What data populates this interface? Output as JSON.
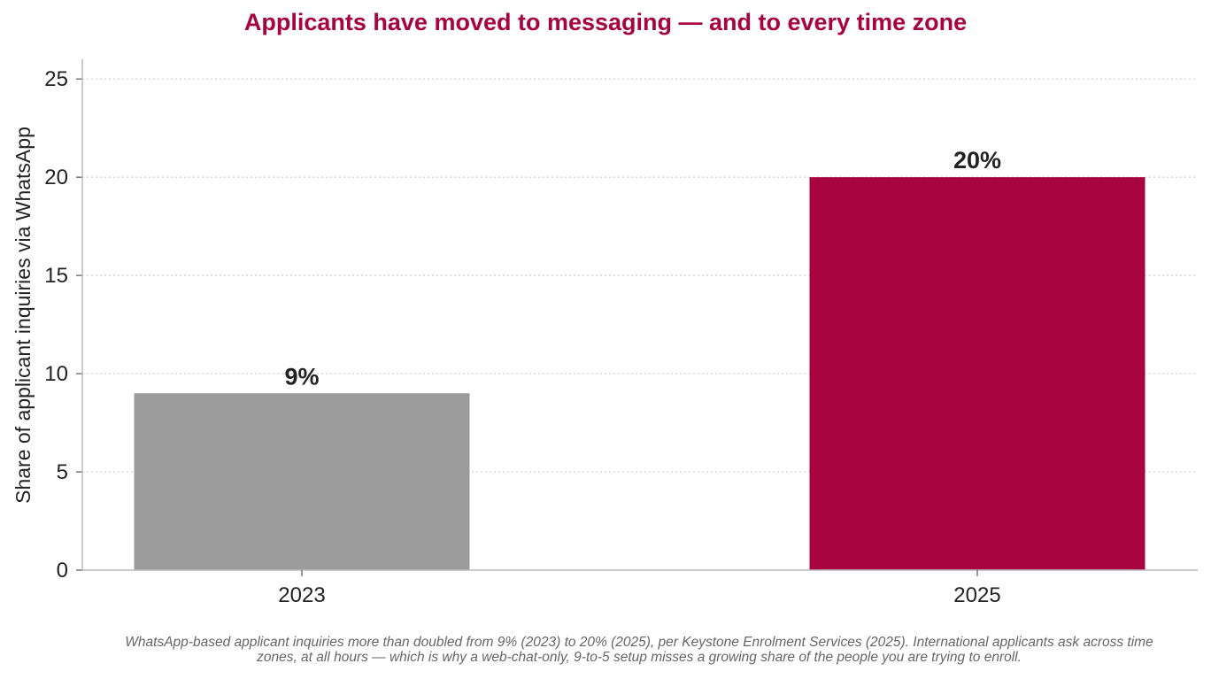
{
  "colors": {
    "accent": "#a6033f",
    "baseline_bar": "#9b9b9b",
    "text": "#222222",
    "caption": "#666666",
    "grid": "#cccccc",
    "axis": "#bbbbbb"
  },
  "caption": "WhatsApp-based applicant inquiries more than doubled from 9% (2023) to 20% (2025), per Keystone Enrolment Services (2025). International applicants ask across time zones, at all hours — which is why a web-chat-only, 9-to-5 setup misses a growing share of the people you are trying to enroll.",
  "chart_data": {
    "type": "bar",
    "title": "Applicants have moved to messaging — and to every time zone",
    "xlabel": "",
    "ylabel": "Share of applicant inquiries via WhatsApp",
    "categories": [
      "2023",
      "2025"
    ],
    "values": [
      9,
      20
    ],
    "data_labels": [
      "9%",
      "20%"
    ],
    "bar_colors": [
      "#9b9b9b",
      "#a6033f"
    ],
    "ylim": [
      0,
      26
    ],
    "yticks": [
      0,
      5,
      10,
      15,
      20,
      25
    ],
    "grid": "horizontal dotted",
    "legend": "none"
  }
}
